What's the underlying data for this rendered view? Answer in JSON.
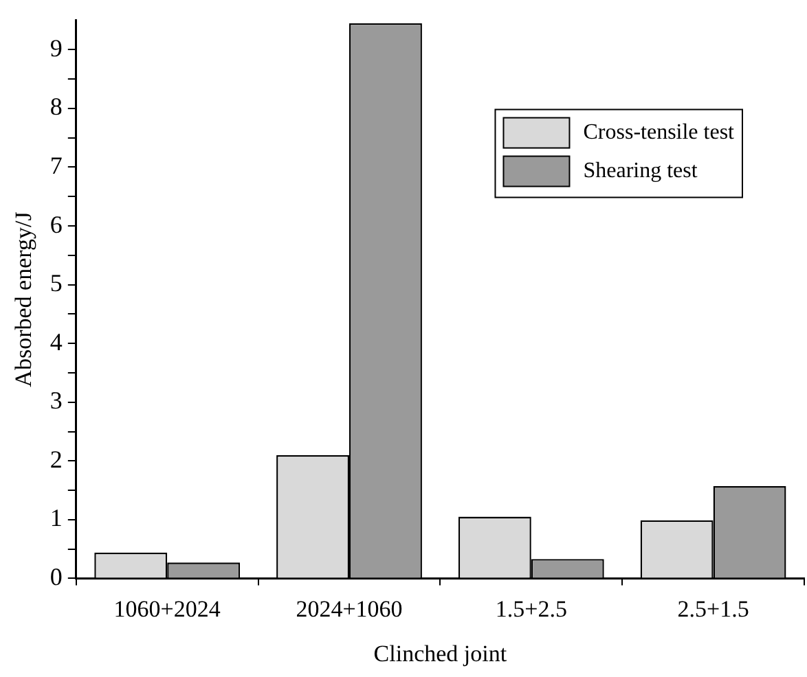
{
  "chart_data": {
    "type": "bar",
    "xlabel": "Clinched joint",
    "ylabel": "Absorbed energy/J",
    "categories": [
      "1060+2024",
      "2024+1060",
      "1.5+2.5",
      "2.5+1.5"
    ],
    "series": [
      {
        "name": "Cross-tensile test",
        "color": "#d9d9d9",
        "values": [
          0.44,
          2.1,
          1.05,
          0.99
        ]
      },
      {
        "name": "Shearing test",
        "color": "#9a9a9a",
        "values": [
          0.27,
          9.45,
          0.33,
          1.57
        ]
      }
    ],
    "ylim": [
      0,
      9.5
    ],
    "yticks": [
      0,
      {
        "value": 0.5,
        "label": null
      },
      1,
      {
        "value": 1.5,
        "label": null
      },
      2,
      {
        "value": 2.5,
        "label": null
      },
      3,
      {
        "value": 3.5,
        "label": null
      },
      4,
      {
        "value": 4.5,
        "label": null
      },
      5,
      {
        "value": 5.5,
        "label": null
      },
      6,
      {
        "value": 6.5,
        "label": null
      },
      7,
      {
        "value": 7.5,
        "label": null
      },
      8,
      {
        "value": 8.5,
        "label": null
      },
      9
    ],
    "grid": false,
    "legend": "top right"
  }
}
